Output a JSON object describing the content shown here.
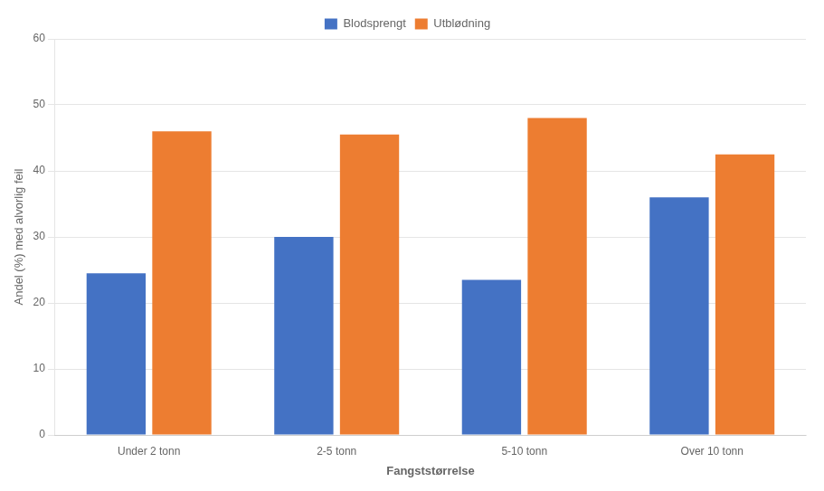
{
  "chart_data": {
    "type": "bar",
    "categories": [
      "Under 2 tonn",
      "2-5 tonn",
      "5-10 tonn",
      "Over 10 tonn"
    ],
    "series": [
      {
        "name": "Blodsprengt",
        "color": "#4472C4",
        "values": [
          24.5,
          30.0,
          23.5,
          36.0
        ]
      },
      {
        "name": "Utblødning",
        "color": "#ED7D31",
        "values": [
          46.0,
          45.5,
          48.0,
          42.5
        ]
      }
    ],
    "xlabel": "Fangststørrelse",
    "ylabel": "Andel (%) med alvorlig feil",
    "ylim": [
      0,
      60
    ],
    "yticks": [
      0,
      10,
      20,
      30,
      40,
      50,
      60
    ],
    "grid": true,
    "legend": "upper center"
  }
}
